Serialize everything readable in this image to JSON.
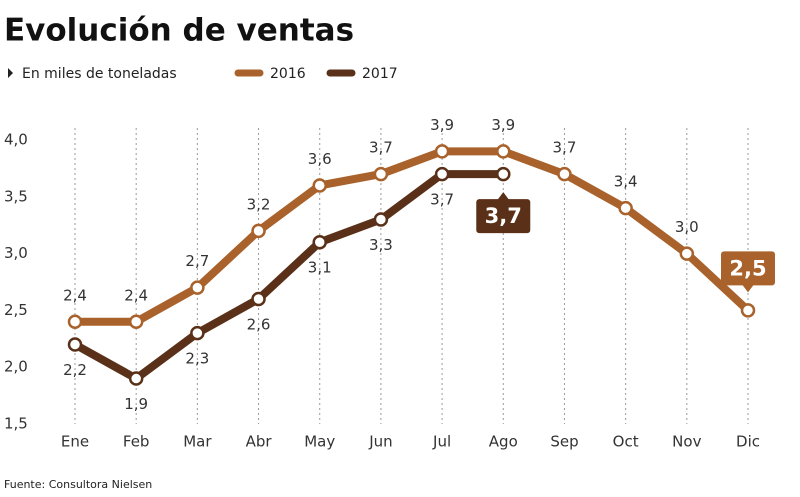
{
  "chart_data": {
    "type": "line",
    "title": "Evolución de ventas",
    "subtitle": "En miles de toneladas",
    "source": "Fuente: Consultora Nielsen",
    "categories": [
      "Ene",
      "Feb",
      "Mar",
      "Abr",
      "May",
      "Jun",
      "Jul",
      "Ago",
      "Sep",
      "Oct",
      "Nov",
      "Dic"
    ],
    "series": [
      {
        "name": "2016",
        "color": "#a9622b",
        "values": [
          2.4,
          2.4,
          2.7,
          3.2,
          3.6,
          3.7,
          3.9,
          3.9,
          3.7,
          3.4,
          3.0,
          2.5
        ],
        "value_labels": [
          "2,4",
          "2,4",
          "2,7",
          "3,2",
          "3,6",
          "3,7",
          "3,9",
          "3,9",
          "3,7",
          "3,4",
          "3,0",
          "2,5"
        ]
      },
      {
        "name": "2017",
        "color": "#5a3118",
        "values": [
          2.2,
          1.9,
          2.3,
          2.6,
          3.1,
          3.3,
          3.7,
          3.7,
          null,
          null,
          null,
          null
        ],
        "value_labels": [
          "2,2",
          "1,9",
          "2,3",
          "2,6",
          "3,1",
          "3,3",
          "3,7",
          "3,7",
          null,
          null,
          null,
          null
        ]
      }
    ],
    "ylim": [
      1.5,
      4.0
    ],
    "yticks": [
      {
        "value": 1.5,
        "label": "1,5"
      },
      {
        "value": 2.0,
        "label": "2,0"
      },
      {
        "value": 2.5,
        "label": "2,5"
      },
      {
        "value": 3.0,
        "label": "3,0"
      },
      {
        "value": 3.5,
        "label": "3,5"
      },
      {
        "value": 4.0,
        "label": "4,0"
      }
    ],
    "grid": "x"
  }
}
